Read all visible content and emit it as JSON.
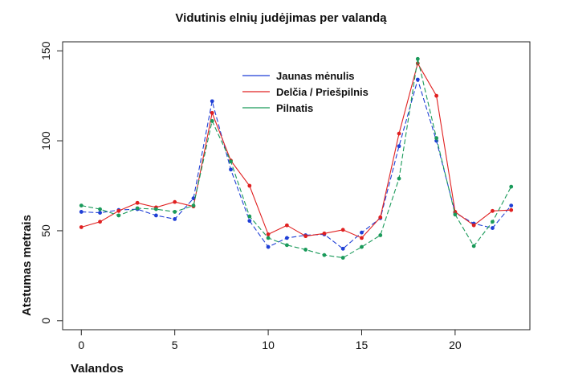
{
  "chart_data": {
    "type": "line",
    "title": "Vidutinis elnių judėjimas per valandą",
    "xlabel": "Valandos",
    "ylabel": "Atstumas metrais",
    "xlim": [
      -1,
      24
    ],
    "ylim": [
      -5,
      155
    ],
    "xticks": [
      0,
      5,
      10,
      15,
      20
    ],
    "yticks": [
      0,
      50,
      100,
      150
    ],
    "x": [
      0,
      1,
      2,
      3,
      4,
      5,
      6,
      7,
      8,
      9,
      10,
      11,
      12,
      13,
      14,
      15,
      16,
      17,
      18,
      19,
      20,
      21,
      22,
      23
    ],
    "legend_position": "top-center",
    "series": [
      {
        "name": "Jaunas mėnulis",
        "color": "#1f3fd6",
        "values": [
          60.5,
          60,
          61.5,
          62,
          58.5,
          56.5,
          68,
          122,
          84,
          55.5,
          41,
          46,
          47.5,
          48,
          40,
          49,
          57,
          97,
          134,
          100,
          60,
          54,
          51.5,
          64
        ]
      },
      {
        "name": "Delčia / Priešpilnis",
        "color": "#e02020",
        "values": [
          52,
          55,
          61,
          65.5,
          63,
          66,
          63.5,
          115.5,
          89,
          75,
          48,
          53,
          47,
          48.5,
          50.5,
          46,
          57.5,
          104,
          143,
          125,
          60.5,
          53,
          61,
          61.5
        ]
      },
      {
        "name": "Pilnatis",
        "color": "#1a9a5a",
        "values": [
          64,
          62,
          58.5,
          62.5,
          62,
          60.5,
          64,
          111,
          88.5,
          58,
          46,
          42,
          39.5,
          36.5,
          35,
          41,
          47.5,
          79,
          145.5,
          101.5,
          59,
          41.5,
          55,
          74.5
        ]
      }
    ]
  }
}
